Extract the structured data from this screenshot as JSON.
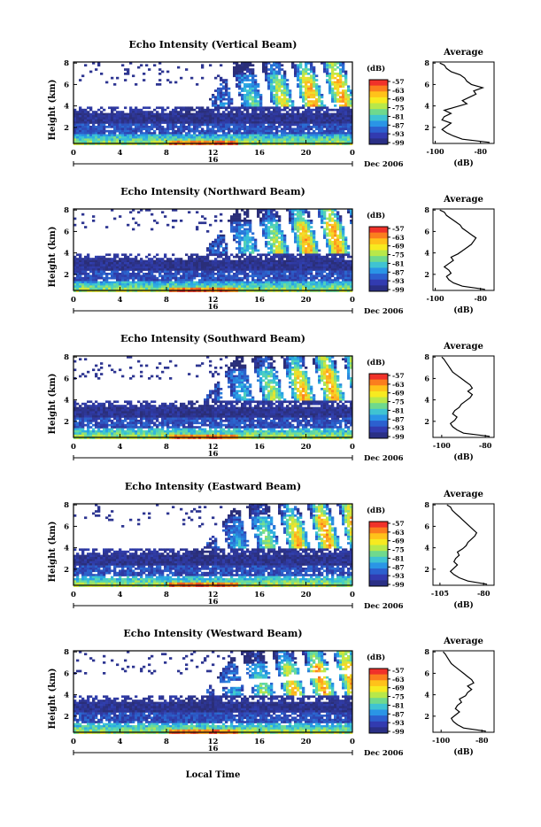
{
  "figure": {
    "xlabel": "Local Time",
    "date_label": "Dec 2006",
    "day_label": "16",
    "colorbar_unit": "(dB)",
    "avg_title": "Average",
    "avg_xlabel": "(dB)",
    "ylabel": "Height (km)"
  },
  "colorbar": {
    "labels": [
      "-57",
      "-63",
      "-69",
      "-75",
      "-81",
      "-87",
      "-93",
      "-99"
    ],
    "colors": [
      "#f0322a",
      "#fb7e1e",
      "#ffc21a",
      "#f7ea20",
      "#b8e84a",
      "#6fd98d",
      "#3fc3d2",
      "#2a95e6",
      "#2c60cf",
      "#323bb0",
      "#2a2f85"
    ]
  },
  "chart_data": [
    {
      "type": "heatmap",
      "title": "Echo Intensity (Vertical Beam)",
      "x_ticks": [
        "0",
        "4",
        "8",
        "12",
        "16",
        "20",
        "0"
      ],
      "y_ticks": [
        "8",
        "6",
        "4",
        "2"
      ],
      "xlim": [
        0,
        24
      ],
      "ylim": [
        0.5,
        8.1
      ],
      "avg_x_ticks": [
        "-100",
        "-80"
      ],
      "avg_xlim": [
        -101,
        -74
      ],
      "average_profile": {
        "height_km": [
          0.6,
          0.9,
          1.2,
          1.5,
          1.8,
          2.1,
          2.4,
          2.7,
          3.0,
          3.3,
          3.6,
          3.9,
          4.2,
          4.5,
          4.8,
          5.1,
          5.4,
          5.7,
          6.0,
          6.3,
          6.6,
          6.9,
          7.2,
          7.5,
          7.8,
          8.0
        ],
        "intensity_db": [
          -76,
          -88,
          -92,
          -95,
          -97,
          -95,
          -93,
          -97,
          -96,
          -93,
          -96,
          -91,
          -86,
          -88,
          -85,
          -82,
          -83,
          -79,
          -84,
          -86,
          -87,
          -89,
          -93,
          -95,
          -96,
          -98
        ]
      }
    },
    {
      "type": "heatmap",
      "title": "Echo Intensity (Northward Beam)",
      "x_ticks": [
        "0",
        "4",
        "8",
        "12",
        "16",
        "20",
        "0"
      ],
      "y_ticks": [
        "8",
        "6",
        "4",
        "2"
      ],
      "xlim": [
        0,
        24
      ],
      "ylim": [
        0.5,
        8.1
      ],
      "avg_x_ticks": [
        "-100",
        "-80"
      ],
      "avg_xlim": [
        -101,
        -74
      ],
      "average_profile": {
        "height_km": [
          0.6,
          0.9,
          1.2,
          1.5,
          1.8,
          2.1,
          2.4,
          2.7,
          3.0,
          3.3,
          3.6,
          3.9,
          4.2,
          4.5,
          4.8,
          5.1,
          5.4,
          5.7,
          6.0,
          6.3,
          6.6,
          6.9,
          7.2,
          7.5,
          7.8,
          8.0
        ],
        "intensity_db": [
          -78,
          -88,
          -92,
          -94,
          -95,
          -93,
          -94,
          -96,
          -94,
          -92,
          -93,
          -90,
          -88,
          -86,
          -84,
          -83,
          -82,
          -84,
          -86,
          -88,
          -89,
          -91,
          -93,
          -95,
          -96,
          -98
        ]
      }
    },
    {
      "type": "heatmap",
      "title": "Echo Intensity (Southward Beam)",
      "x_ticks": [
        "0",
        "4",
        "8",
        "12",
        "16",
        "20",
        "0"
      ],
      "y_ticks": [
        "8",
        "6",
        "4",
        "2"
      ],
      "xlim": [
        0,
        24
      ],
      "ylim": [
        0.5,
        8.1
      ],
      "avg_x_ticks": [
        "-100",
        "-80"
      ],
      "avg_xlim": [
        -104,
        -76
      ],
      "average_profile": {
        "height_km": [
          0.6,
          0.9,
          1.2,
          1.5,
          1.8,
          2.1,
          2.4,
          2.7,
          3.0,
          3.3,
          3.6,
          3.9,
          4.2,
          4.5,
          4.8,
          5.1,
          5.4,
          5.7,
          6.0,
          6.3,
          6.6,
          6.9,
          7.2,
          7.5,
          7.8,
          8.0
        ],
        "intensity_db": [
          -78,
          -90,
          -93,
          -95,
          -96,
          -94,
          -93,
          -95,
          -94,
          -92,
          -91,
          -89,
          -87,
          -86,
          -88,
          -86,
          -87,
          -89,
          -91,
          -93,
          -95,
          -96,
          -97,
          -98,
          -99,
          -100
        ]
      }
    },
    {
      "type": "heatmap",
      "title": "Echo Intensity (Eastward Beam)",
      "x_ticks": [
        "0",
        "4",
        "8",
        "12",
        "16",
        "20",
        "0"
      ],
      "y_ticks": [
        "8",
        "6",
        "4",
        "2"
      ],
      "xlim": [
        0,
        24
      ],
      "ylim": [
        0.5,
        8.1
      ],
      "avg_x_ticks": [
        "-105",
        "-80"
      ],
      "avg_xlim": [
        -109,
        -74
      ],
      "average_profile": {
        "height_km": [
          0.6,
          0.9,
          1.2,
          1.5,
          1.8,
          2.1,
          2.4,
          2.7,
          3.0,
          3.3,
          3.6,
          3.9,
          4.2,
          4.5,
          4.8,
          5.1,
          5.4,
          5.7,
          6.0,
          6.3,
          6.6,
          6.9,
          7.2,
          7.5,
          7.8,
          8.0
        ],
        "intensity_db": [
          -78,
          -89,
          -94,
          -97,
          -99,
          -97,
          -95,
          -97,
          -96,
          -94,
          -95,
          -92,
          -90,
          -89,
          -87,
          -85,
          -84,
          -86,
          -88,
          -90,
          -92,
          -94,
          -96,
          -98,
          -99,
          -101
        ]
      }
    },
    {
      "type": "heatmap",
      "title": "Echo Intensity (Westward Beam)",
      "x_ticks": [
        "0",
        "4",
        "8",
        "12",
        "16",
        "20",
        "0"
      ],
      "y_ticks": [
        "8",
        "6",
        "4",
        "2"
      ],
      "xlim": [
        0,
        24
      ],
      "ylim": [
        0.5,
        8.1
      ],
      "avg_x_ticks": [
        "-100",
        "-80"
      ],
      "avg_xlim": [
        -104,
        -74
      ],
      "average_profile": {
        "height_km": [
          0.6,
          0.9,
          1.2,
          1.5,
          1.8,
          2.1,
          2.4,
          2.7,
          3.0,
          3.3,
          3.6,
          3.9,
          4.2,
          4.5,
          4.8,
          5.1,
          5.4,
          5.7,
          6.0,
          6.3,
          6.6,
          6.9,
          7.2,
          7.5,
          7.8,
          8.0
        ],
        "intensity_db": [
          -78,
          -89,
          -92,
          -94,
          -95,
          -93,
          -91,
          -93,
          -92,
          -90,
          -91,
          -88,
          -87,
          -85,
          -87,
          -84,
          -85,
          -87,
          -89,
          -91,
          -93,
          -95,
          -96,
          -97,
          -98,
          -99
        ]
      }
    }
  ]
}
